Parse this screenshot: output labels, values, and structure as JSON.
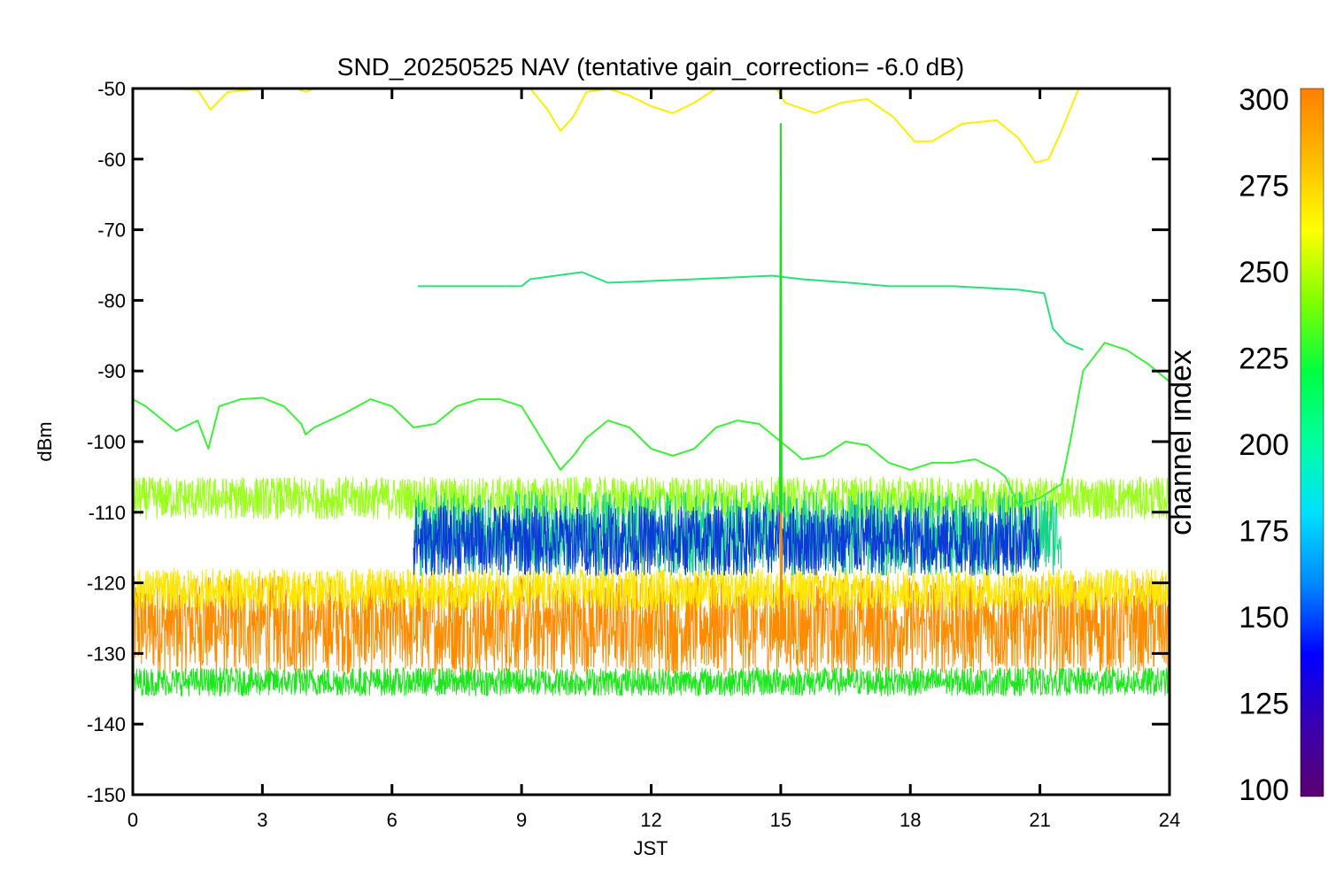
{
  "chart_data": {
    "type": "line",
    "title": "SND_20250525 NAV (tentative gain_correction= -6.0 dB)",
    "xlabel": "JST",
    "ylabel": "dBm",
    "xlim": [
      0,
      24
    ],
    "ylim": [
      -150,
      -50
    ],
    "x_ticks": [
      0,
      3,
      6,
      9,
      12,
      15,
      18,
      21,
      24
    ],
    "y_ticks": [
      -50,
      -60,
      -70,
      -80,
      -90,
      -100,
      -110,
      -120,
      -130,
      -140,
      -150
    ],
    "grid": false,
    "colorbar": {
      "label": "channel index",
      "range": [
        100,
        300
      ],
      "ticks": [
        300,
        275,
        250,
        225,
        200,
        175,
        150,
        125,
        100
      ],
      "colors": [
        "#5a0070",
        "#3a00b0",
        "#0000ff",
        "#0088ff",
        "#00e0ff",
        "#00ffa0",
        "#00ff40",
        "#80ff00",
        "#ffff00",
        "#ffbb00",
        "#ff7f00"
      ]
    },
    "series": [
      {
        "channel": 290,
        "color": "#ff8c00",
        "kind": "noise-band",
        "x_range": [
          0,
          24
        ],
        "y_center": -126,
        "y_halfwidth": 7,
        "spikes": []
      },
      {
        "channel": 255,
        "color": "#9aff1a",
        "kind": "noise-band",
        "x_range": [
          0,
          24
        ],
        "y_center": -108,
        "y_halfwidth": 3,
        "spikes": []
      },
      {
        "channel": 270,
        "color": "#ffe600",
        "kind": "noise-band",
        "x_range": [
          0,
          24
        ],
        "y_center": -121,
        "y_halfwidth": 3,
        "spikes": []
      },
      {
        "channel": 200,
        "color": "#19d38a",
        "kind": "noise-band",
        "x_range": [
          6.5,
          21.5
        ],
        "y_center": -113,
        "y_halfwidth": 6,
        "spikes": []
      },
      {
        "channel": 150,
        "color": "#0b3bd6",
        "kind": "noise-band",
        "x_range": [
          6.5,
          21
        ],
        "y_center": -114,
        "y_halfwidth": 5,
        "spikes": []
      },
      {
        "channel": 240,
        "color": "#1ee61e",
        "kind": "noise-band",
        "x_range": [
          0,
          24
        ],
        "y_center": -134,
        "y_halfwidth": 2,
        "spikes": []
      },
      {
        "channel": 275,
        "color": "#ffee00",
        "kind": "curve",
        "points": [
          [
            0.9,
            -50
          ],
          [
            1.5,
            -50.2
          ],
          [
            1.8,
            -53
          ],
          [
            2.2,
            -50.5
          ],
          [
            3,
            -50
          ],
          [
            3.8,
            -50
          ],
          [
            4,
            -50.5
          ],
          [
            4.2,
            -50
          ],
          [
            9.2,
            -50
          ],
          [
            9.6,
            -53
          ],
          [
            9.9,
            -56
          ],
          [
            10.2,
            -54
          ],
          [
            10.5,
            -50.5
          ],
          [
            11,
            -50
          ],
          [
            11.5,
            -51
          ],
          [
            12,
            -52.5
          ],
          [
            12.5,
            -53.5
          ],
          [
            13,
            -52
          ],
          [
            13.5,
            -50
          ],
          [
            14.9,
            -50
          ],
          [
            15.1,
            -52
          ],
          [
            15.8,
            -53.5
          ],
          [
            16.4,
            -52
          ],
          [
            17,
            -51.5
          ],
          [
            17.6,
            -54
          ],
          [
            18.1,
            -57.5
          ],
          [
            18.5,
            -57.5
          ],
          [
            19.2,
            -55
          ],
          [
            20,
            -54.5
          ],
          [
            20.5,
            -57
          ],
          [
            20.9,
            -60.5
          ],
          [
            21.2,
            -60
          ],
          [
            21.5,
            -56
          ],
          [
            21.9,
            -50
          ]
        ]
      },
      {
        "channel": 235,
        "color": "#3cf03c",
        "kind": "curve",
        "points": [
          [
            0,
            -94
          ],
          [
            0.3,
            -95
          ],
          [
            1,
            -98.5
          ],
          [
            1.5,
            -97
          ],
          [
            1.75,
            -101
          ],
          [
            2,
            -95
          ],
          [
            2.5,
            -94
          ],
          [
            3,
            -93.8
          ],
          [
            3.5,
            -95
          ],
          [
            3.9,
            -97.5
          ],
          [
            4,
            -99
          ],
          [
            4.2,
            -98
          ],
          [
            4.9,
            -96
          ],
          [
            5.5,
            -94
          ],
          [
            6,
            -95
          ],
          [
            6.5,
            -98
          ],
          [
            7,
            -97.5
          ],
          [
            7.5,
            -95
          ],
          [
            8,
            -94
          ],
          [
            8.5,
            -94
          ],
          [
            9,
            -95
          ],
          [
            9.3,
            -98
          ],
          [
            9.6,
            -101
          ],
          [
            9.9,
            -104
          ],
          [
            10.2,
            -102
          ],
          [
            10.5,
            -99.5
          ],
          [
            11,
            -97
          ],
          [
            11.5,
            -98
          ],
          [
            12,
            -101
          ],
          [
            12.5,
            -102
          ],
          [
            13,
            -101
          ],
          [
            13.5,
            -98
          ],
          [
            14,
            -97
          ],
          [
            14.5,
            -97.5
          ],
          [
            15,
            -100
          ],
          [
            15.5,
            -102.5
          ],
          [
            16,
            -102
          ],
          [
            16.5,
            -100
          ],
          [
            17,
            -100.5
          ],
          [
            17.5,
            -103
          ],
          [
            18,
            -104
          ],
          [
            18.5,
            -103
          ],
          [
            19,
            -103
          ],
          [
            19.5,
            -102.5
          ],
          [
            20,
            -104
          ],
          [
            20.2,
            -105
          ],
          [
            20.5,
            -109
          ],
          [
            21,
            -108
          ],
          [
            21.5,
            -106
          ],
          [
            21.7,
            -100
          ],
          [
            22,
            -90
          ],
          [
            22.5,
            -86
          ],
          [
            23,
            -87
          ],
          [
            23.5,
            -89
          ],
          [
            24,
            -91.5
          ]
        ]
      },
      {
        "channel": 215,
        "color": "#2adf7e",
        "kind": "curve",
        "points": [
          [
            6.6,
            -78
          ],
          [
            9,
            -78
          ],
          [
            9.2,
            -77
          ],
          [
            10.4,
            -76
          ],
          [
            11,
            -77.5
          ],
          [
            13,
            -77
          ],
          [
            14.8,
            -76.5
          ],
          [
            15.5,
            -77
          ],
          [
            16.6,
            -77.5
          ],
          [
            17.5,
            -78
          ],
          [
            19,
            -78
          ],
          [
            20.5,
            -78.5
          ],
          [
            21.1,
            -79
          ],
          [
            21.3,
            -84
          ],
          [
            21.6,
            -86
          ],
          [
            22,
            -87
          ]
        ]
      },
      {
        "channel": 290,
        "color": "#ff8c00",
        "kind": "curve",
        "points": [
          [
            15,
            -128
          ],
          [
            15,
            -70
          ],
          [
            15.02,
            -128
          ]
        ]
      },
      {
        "channel": 245,
        "color": "#28d828",
        "kind": "curve",
        "points": [
          [
            14.98,
            -110
          ],
          [
            15,
            -55
          ],
          [
            15.02,
            -110
          ]
        ]
      }
    ]
  }
}
